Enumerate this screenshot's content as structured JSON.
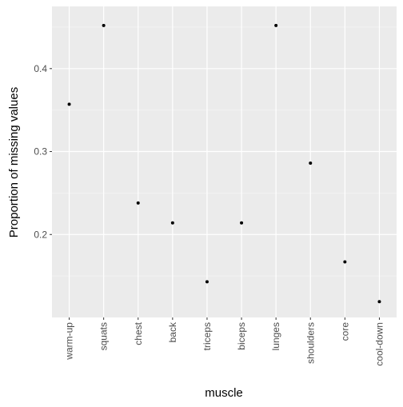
{
  "chart_data": {
    "type": "scatter",
    "title": "",
    "xlabel": "muscle",
    "ylabel": "Proportion of missing values",
    "categories": [
      "warm-up",
      "squats",
      "chest",
      "back",
      "triceps",
      "biceps",
      "lunges",
      "shoulders",
      "core",
      "cool-down"
    ],
    "values": [
      0.357,
      0.452,
      0.238,
      0.214,
      0.143,
      0.214,
      0.452,
      0.286,
      0.167,
      0.119
    ],
    "ylim": [
      0.1,
      0.475
    ],
    "yticks": [
      0.2,
      0.3,
      0.4
    ],
    "ytick_labels": [
      "0.2",
      "0.3",
      "0.4"
    ],
    "grid": true,
    "legend": "none",
    "colors": {
      "panel_background": "#ebebeb",
      "grid_major": "#ffffff",
      "point": "#000000"
    }
  }
}
